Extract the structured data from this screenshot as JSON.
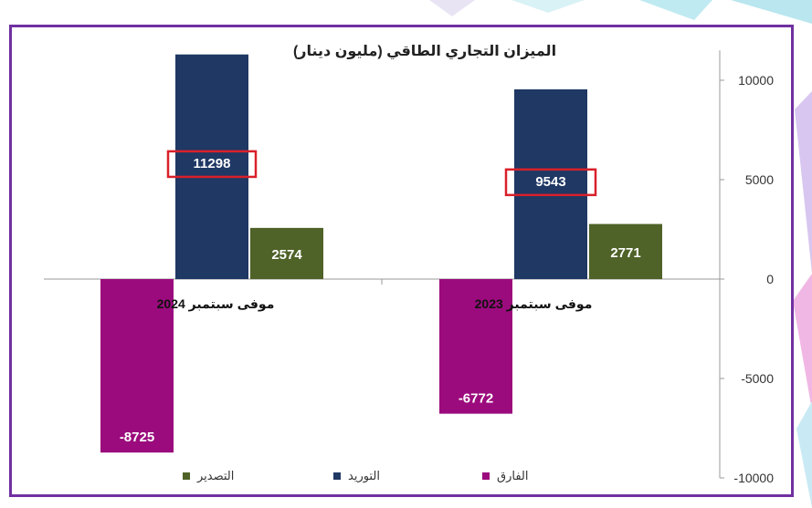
{
  "chart_data": {
    "type": "bar",
    "title": "الميزان التجاري الطاقي (مليون دينار)",
    "categories": [
      "موفى سبتمبر 2024",
      "موفى سبتمبر 2023"
    ],
    "series": [
      {
        "name": "الفارق",
        "color": "#9b0b7d",
        "values": [
          -8725,
          -6772
        ]
      },
      {
        "name": "التوريد",
        "color": "#1f3864",
        "values": [
          11298,
          9543
        ]
      },
      {
        "name": "التصدير",
        "color": "#4f6228",
        "values": [
          2574,
          2771
        ]
      }
    ],
    "highlighted": [
      "11298",
      "9543"
    ],
    "highlight_color": "#d9202a",
    "y_ticks": [
      "10000",
      "5000",
      "0",
      "-5000",
      "-10000"
    ],
    "ylim": [
      -10000,
      11500
    ],
    "y_axis_side": "right",
    "legend_position": "bottom",
    "frame_color": "#7030a0"
  }
}
